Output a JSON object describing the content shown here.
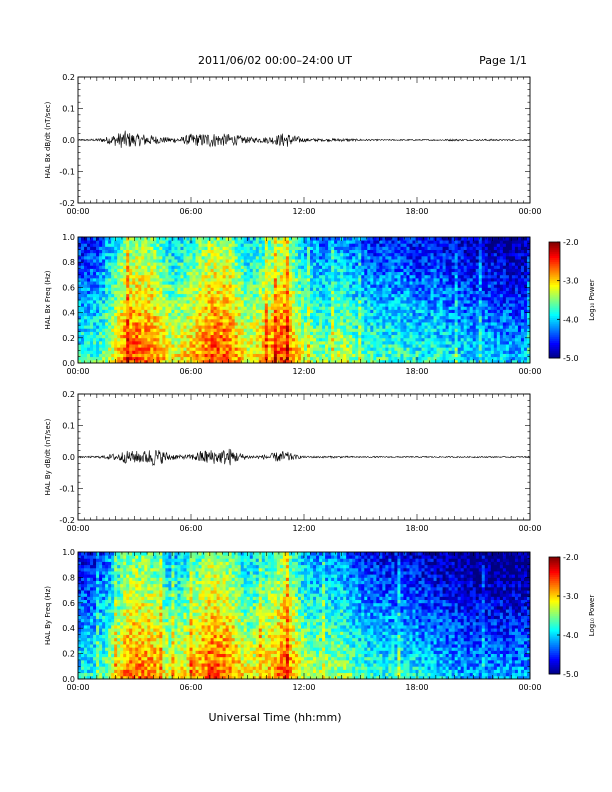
{
  "header": {
    "title": "2011/06/02  00:00–24:00 UT",
    "page": "Page 1/1"
  },
  "xaxis_title": "Universal Time (hh:mm)",
  "colorbar": {
    "label": "Log₁₀ Power",
    "ticks": [
      "-2.0",
      "-3.0",
      "-4.0",
      "-5.0"
    ],
    "range": [
      -5.0,
      -2.0
    ]
  },
  "chart_data": [
    {
      "type": "line",
      "ylabel": "HAL Bx dB/dt (nT/sec)",
      "ylim": [
        -0.2,
        0.2
      ],
      "yticks": [
        "0.2",
        "0.1",
        "0.0",
        "-0.1",
        "-0.2"
      ],
      "xlim": [
        "00:00",
        "24:00"
      ],
      "xticks": [
        "00:00",
        "06:00",
        "12:00",
        "18:00",
        "00:00"
      ],
      "envelope": {
        "t_hours": [
          0,
          1,
          1.5,
          2,
          2.5,
          3,
          3.5,
          4,
          4.5,
          5,
          5.5,
          6,
          6.5,
          7,
          7.5,
          8,
          8.5,
          9,
          9.5,
          10,
          10.5,
          11,
          11.5,
          12,
          13,
          14,
          15,
          16,
          17,
          18,
          19,
          20,
          21,
          22,
          23,
          24
        ],
        "amplitude": [
          0.002,
          0.004,
          0.01,
          0.02,
          0.03,
          0.02,
          0.02,
          0.015,
          0.01,
          0.008,
          0.01,
          0.02,
          0.02,
          0.025,
          0.02,
          0.02,
          0.015,
          0.01,
          0.008,
          0.01,
          0.015,
          0.025,
          0.015,
          0.006,
          0.004,
          0.005,
          0.003,
          0.002,
          0.002,
          0.002,
          0.002,
          0.003,
          0.002,
          0.003,
          0.002,
          0.002
        ]
      }
    },
    {
      "type": "heatmap",
      "ylabel": "HAL Bx Freq (Hz)",
      "ylim": [
        0.0,
        1.0
      ],
      "yticks": [
        "1.0",
        "0.8",
        "0.6",
        "0.4",
        "0.2",
        "0.0"
      ],
      "xlim": [
        "00:00",
        "24:00"
      ],
      "xticks": [
        "00:00",
        "06:00",
        "12:00",
        "18:00",
        "00:00"
      ],
      "zlabel": "Log₁₀ Power",
      "zlim": [
        -5.0,
        -2.0
      ],
      "activity": {
        "t_hours": [
          0,
          1,
          2,
          2.5,
          3,
          4,
          5,
          6,
          7,
          8,
          9,
          10,
          11,
          12,
          13,
          14,
          15,
          16,
          17,
          18,
          19,
          20,
          21,
          22,
          23,
          24
        ],
        "log_power": [
          -4.0,
          -3.9,
          -3.3,
          -2.9,
          -2.8,
          -2.9,
          -3.4,
          -3.2,
          -2.8,
          -2.8,
          -3.4,
          -3.1,
          -2.7,
          -3.5,
          -3.7,
          -3.5,
          -3.8,
          -3.9,
          -3.9,
          -4.0,
          -4.0,
          -4.1,
          -4.2,
          -4.2,
          -4.3,
          -4.3
        ]
      }
    },
    {
      "type": "line",
      "ylabel": "HAL By dB/dt (nT/sec)",
      "ylim": [
        -0.2,
        0.2
      ],
      "yticks": [
        "0.2",
        "0.1",
        "0.0",
        "-0.1",
        "-0.2"
      ],
      "xlim": [
        "00:00",
        "24:00"
      ],
      "xticks": [
        "00:00",
        "06:00",
        "12:00",
        "18:00",
        "00:00"
      ],
      "envelope": {
        "t_hours": [
          0,
          1,
          1.5,
          2,
          2.5,
          3,
          3.5,
          4,
          4.5,
          5,
          5.5,
          6,
          6.5,
          7,
          7.5,
          8,
          8.5,
          9,
          9.5,
          10,
          10.5,
          11,
          11.5,
          12,
          13,
          14,
          15,
          16,
          17,
          18,
          19,
          20,
          21,
          22,
          23,
          24
        ],
        "amplitude": [
          0.002,
          0.003,
          0.006,
          0.012,
          0.02,
          0.02,
          0.02,
          0.03,
          0.02,
          0.01,
          0.006,
          0.008,
          0.02,
          0.025,
          0.02,
          0.03,
          0.015,
          0.006,
          0.005,
          0.008,
          0.015,
          0.02,
          0.008,
          0.003,
          0.003,
          0.003,
          0.002,
          0.002,
          0.002,
          0.002,
          0.002,
          0.002,
          0.002,
          0.002,
          0.002,
          0.002
        ]
      }
    },
    {
      "type": "heatmap",
      "ylabel": "HAL By Freq (Hz)",
      "ylim": [
        0.0,
        1.0
      ],
      "yticks": [
        "1.0",
        "0.8",
        "0.6",
        "0.4",
        "0.2",
        "0.0"
      ],
      "xlim": [
        "00:00",
        "24:00"
      ],
      "xticks": [
        "00:00",
        "06:00",
        "12:00",
        "18:00",
        "00:00"
      ],
      "zlabel": "Log₁₀ Power",
      "zlim": [
        -5.0,
        -2.0
      ],
      "activity": {
        "t_hours": [
          0,
          1,
          2,
          2.5,
          3,
          4,
          5,
          6,
          7,
          8,
          9,
          10,
          11,
          12,
          13,
          14,
          15,
          16,
          17,
          18,
          19,
          20,
          21,
          22,
          23,
          24
        ],
        "log_power": [
          -4.1,
          -4.0,
          -3.4,
          -3.0,
          -2.9,
          -3.0,
          -3.5,
          -3.2,
          -2.8,
          -2.9,
          -3.4,
          -3.2,
          -2.8,
          -3.5,
          -3.6,
          -3.6,
          -3.9,
          -4.0,
          -4.0,
          -4.1,
          -4.2,
          -4.3,
          -4.4,
          -4.4,
          -4.4,
          -4.4
        ]
      }
    }
  ]
}
